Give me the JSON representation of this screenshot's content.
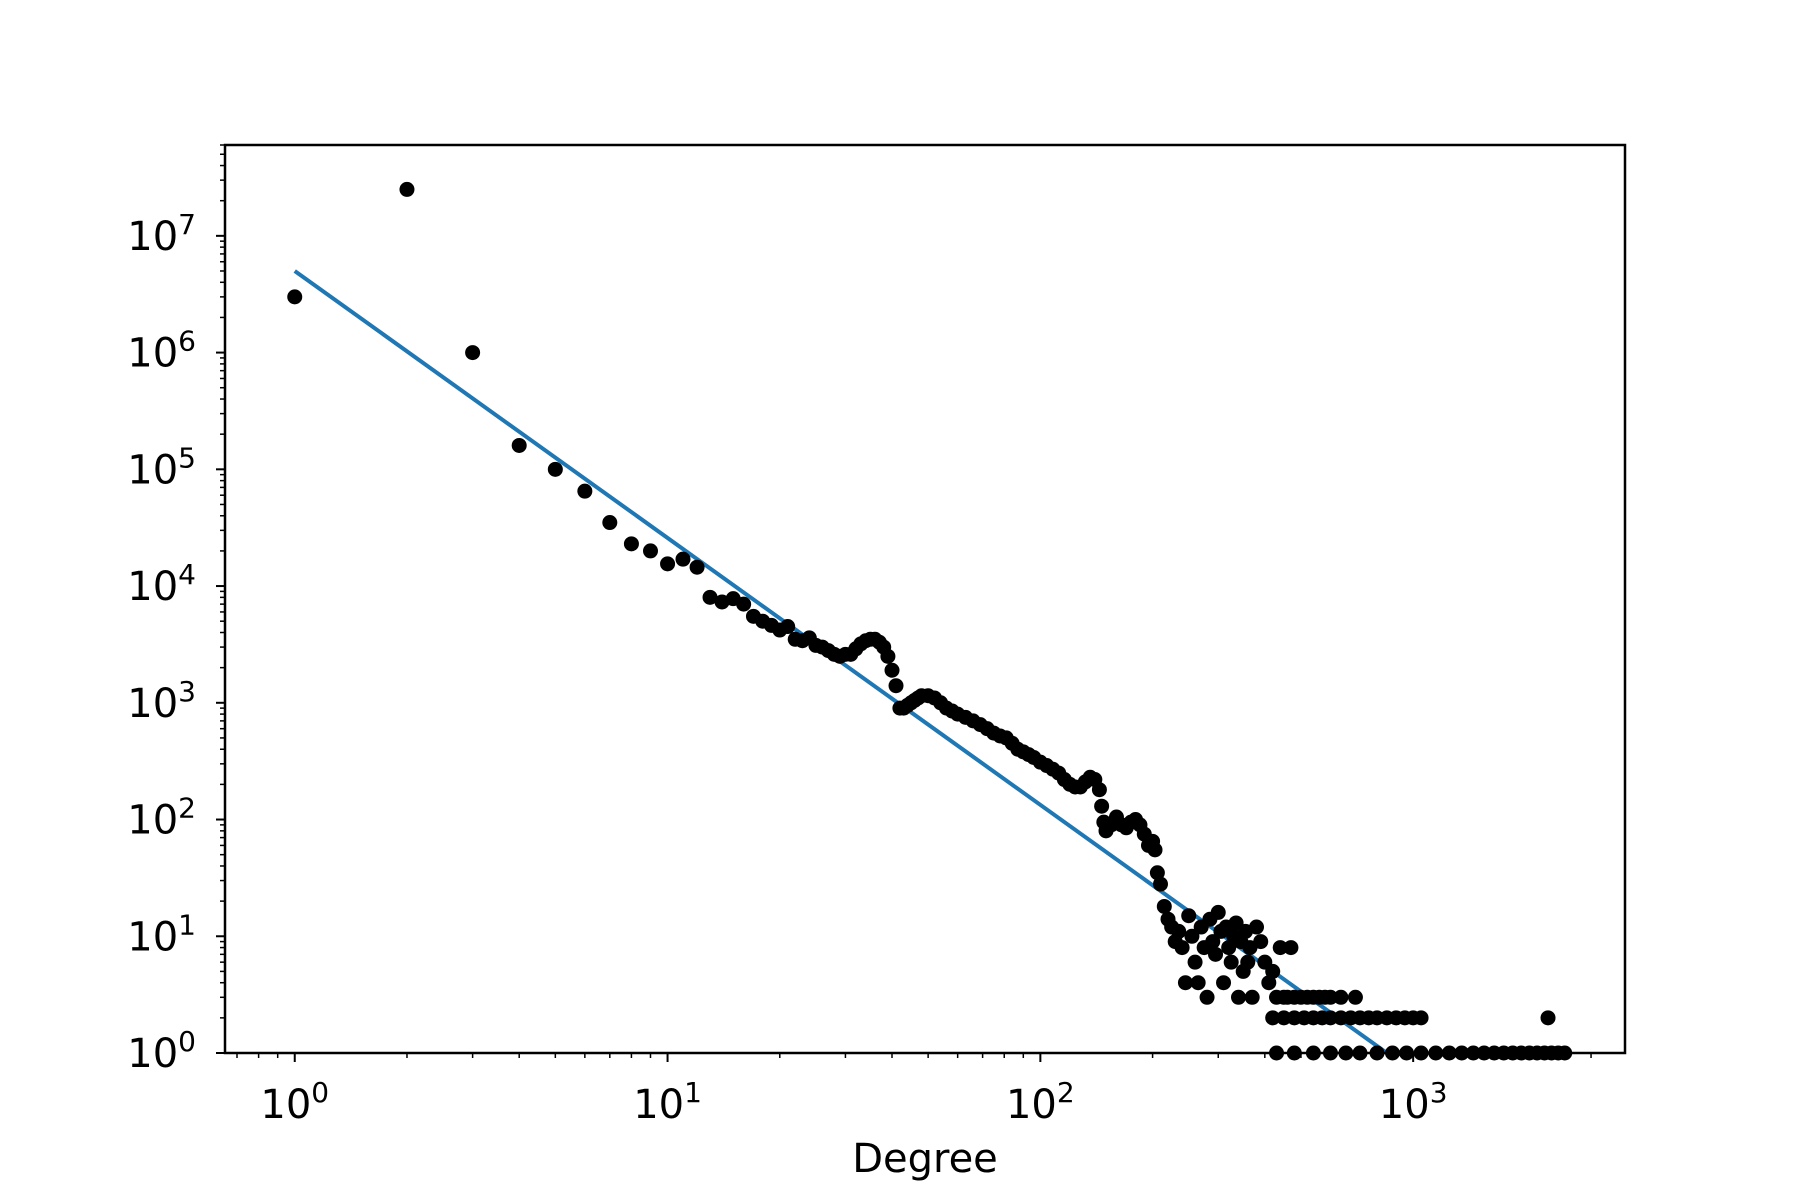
{
  "chart_data": {
    "type": "scatter",
    "title": "",
    "xlabel": "Degree",
    "ylabel": "",
    "xscale": "log",
    "yscale": "log",
    "xlim": [
      0.65,
      3700
    ],
    "ylim": [
      1,
      60000000
    ],
    "grid": false,
    "x_ticks": [
      {
        "base": "10",
        "exp": "0",
        "value": 1
      },
      {
        "base": "10",
        "exp": "1",
        "value": 10
      },
      {
        "base": "10",
        "exp": "2",
        "value": 100
      },
      {
        "base": "10",
        "exp": "3",
        "value": 1000
      }
    ],
    "y_ticks": [
      {
        "base": "10",
        "exp": "0",
        "value": 1
      },
      {
        "base": "10",
        "exp": "1",
        "value": 10
      },
      {
        "base": "10",
        "exp": "2",
        "value": 100
      },
      {
        "base": "10",
        "exp": "3",
        "value": 1000
      },
      {
        "base": "10",
        "exp": "4",
        "value": 10000
      },
      {
        "base": "10",
        "exp": "5",
        "value": 100000
      },
      {
        "base": "10",
        "exp": "6",
        "value": 1000000
      },
      {
        "base": "10",
        "exp": "7",
        "value": 10000000
      }
    ],
    "colors": {
      "points": "#000000",
      "fit_line": "#1f77b4",
      "axes": "#000000"
    },
    "fit_line": {
      "x": [
        1,
        850
      ],
      "y": [
        5000000,
        1
      ]
    },
    "series": [
      {
        "points": [
          [
            1,
            3000000
          ],
          [
            2,
            25000000
          ],
          [
            3,
            1000000
          ],
          [
            4,
            160000
          ],
          [
            5,
            100000
          ],
          [
            6,
            65000
          ],
          [
            7,
            35000
          ],
          [
            8,
            23000
          ],
          [
            9,
            20000
          ],
          [
            10,
            15500
          ],
          [
            11,
            17000
          ],
          [
            12,
            14500
          ],
          [
            13,
            8000
          ],
          [
            14,
            7300
          ],
          [
            15,
            7800
          ],
          [
            16,
            7000
          ],
          [
            17,
            5500
          ],
          [
            18,
            5000
          ],
          [
            19,
            4600
          ],
          [
            20,
            4200
          ],
          [
            21,
            4500
          ],
          [
            22,
            3500
          ],
          [
            23,
            3400
          ],
          [
            24,
            3600
          ],
          [
            25,
            3100
          ],
          [
            26,
            3000
          ],
          [
            27,
            2800
          ],
          [
            28,
            2600
          ],
          [
            29,
            2500
          ],
          [
            30,
            2600
          ],
          [
            31,
            2600
          ],
          [
            32,
            2900
          ],
          [
            33,
            3200
          ],
          [
            34,
            3400
          ],
          [
            35,
            3500
          ],
          [
            36,
            3500
          ],
          [
            37,
            3300
          ],
          [
            38,
            3000
          ],
          [
            39,
            2500
          ],
          [
            40,
            1900
          ],
          [
            41,
            1400
          ],
          [
            42,
            900
          ],
          [
            43,
            900
          ],
          [
            44,
            950
          ],
          [
            45,
            1000
          ],
          [
            46,
            1050
          ],
          [
            47,
            1100
          ],
          [
            48,
            1150
          ],
          [
            50,
            1150
          ],
          [
            52,
            1100
          ],
          [
            54,
            1000
          ],
          [
            56,
            900
          ],
          [
            58,
            850
          ],
          [
            60,
            800
          ],
          [
            63,
            750
          ],
          [
            66,
            700
          ],
          [
            69,
            650
          ],
          [
            72,
            600
          ],
          [
            75,
            550
          ],
          [
            78,
            520
          ],
          [
            81,
            500
          ],
          [
            84,
            450
          ],
          [
            87,
            400
          ],
          [
            90,
            380
          ],
          [
            93,
            360
          ],
          [
            96,
            340
          ],
          [
            100,
            310
          ],
          [
            104,
            290
          ],
          [
            108,
            270
          ],
          [
            112,
            250
          ],
          [
            116,
            220
          ],
          [
            120,
            200
          ],
          [
            124,
            190
          ],
          [
            128,
            190
          ],
          [
            132,
            210
          ],
          [
            136,
            230
          ],
          [
            140,
            220
          ],
          [
            144,
            180
          ],
          [
            146,
            130
          ],
          [
            148,
            95
          ],
          [
            150,
            80
          ],
          [
            155,
            90
          ],
          [
            160,
            105
          ],
          [
            165,
            90
          ],
          [
            170,
            85
          ],
          [
            175,
            95
          ],
          [
            180,
            100
          ],
          [
            185,
            90
          ],
          [
            190,
            75
          ],
          [
            195,
            60
          ],
          [
            200,
            65
          ],
          [
            203,
            55
          ],
          [
            206,
            35
          ],
          [
            210,
            28
          ],
          [
            215,
            18
          ],
          [
            220,
            14
          ],
          [
            225,
            12
          ],
          [
            230,
            9
          ],
          [
            235,
            11
          ],
          [
            240,
            8
          ],
          [
            245,
            4
          ],
          [
            250,
            15
          ],
          [
            255,
            10
          ],
          [
            260,
            6
          ],
          [
            265,
            4
          ],
          [
            270,
            12
          ],
          [
            275,
            8
          ],
          [
            280,
            3
          ],
          [
            285,
            14
          ],
          [
            290,
            9
          ],
          [
            295,
            7
          ],
          [
            300,
            16
          ],
          [
            305,
            11
          ],
          [
            310,
            4
          ],
          [
            315,
            12
          ],
          [
            320,
            8
          ],
          [
            325,
            6
          ],
          [
            330,
            10
          ],
          [
            335,
            13
          ],
          [
            340,
            3
          ],
          [
            345,
            9
          ],
          [
            350,
            5
          ],
          [
            355,
            11
          ],
          [
            360,
            6
          ],
          [
            365,
            8
          ],
          [
            370,
            3
          ],
          [
            380,
            12
          ],
          [
            390,
            9
          ],
          [
            400,
            6
          ],
          [
            410,
            4
          ],
          [
            420,
            5
          ],
          [
            430,
            3
          ],
          [
            440,
            8
          ],
          [
            450,
            3
          ],
          [
            460,
            3
          ],
          [
            470,
            8
          ],
          [
            480,
            3
          ],
          [
            500,
            3
          ],
          [
            520,
            3
          ],
          [
            540,
            3
          ],
          [
            560,
            3
          ],
          [
            580,
            3
          ],
          [
            600,
            3
          ],
          [
            640,
            3
          ],
          [
            700,
            3
          ],
          [
            420,
            2
          ],
          [
            450,
            2
          ],
          [
            480,
            2
          ],
          [
            510,
            2
          ],
          [
            540,
            2
          ],
          [
            570,
            2
          ],
          [
            600,
            2
          ],
          [
            640,
            2
          ],
          [
            680,
            2
          ],
          [
            720,
            2
          ],
          [
            760,
            2
          ],
          [
            800,
            2
          ],
          [
            850,
            2
          ],
          [
            900,
            2
          ],
          [
            950,
            2
          ],
          [
            1000,
            2
          ],
          [
            1050,
            2
          ],
          [
            430,
            1
          ],
          [
            480,
            1
          ],
          [
            540,
            1
          ],
          [
            600,
            1
          ],
          [
            660,
            1
          ],
          [
            720,
            1
          ],
          [
            800,
            1
          ],
          [
            880,
            1
          ],
          [
            960,
            1
          ],
          [
            1050,
            1
          ],
          [
            1150,
            1
          ],
          [
            1250,
            1
          ],
          [
            1350,
            1
          ],
          [
            1450,
            1
          ],
          [
            1550,
            1
          ],
          [
            1650,
            1
          ],
          [
            1750,
            1
          ],
          [
            1850,
            1
          ],
          [
            1950,
            1
          ],
          [
            2050,
            1
          ],
          [
            2150,
            1
          ],
          [
            2250,
            1
          ],
          [
            2350,
            1
          ],
          [
            2450,
            1
          ],
          [
            2550,
            1
          ],
          [
            2300,
            2
          ]
        ]
      }
    ]
  }
}
